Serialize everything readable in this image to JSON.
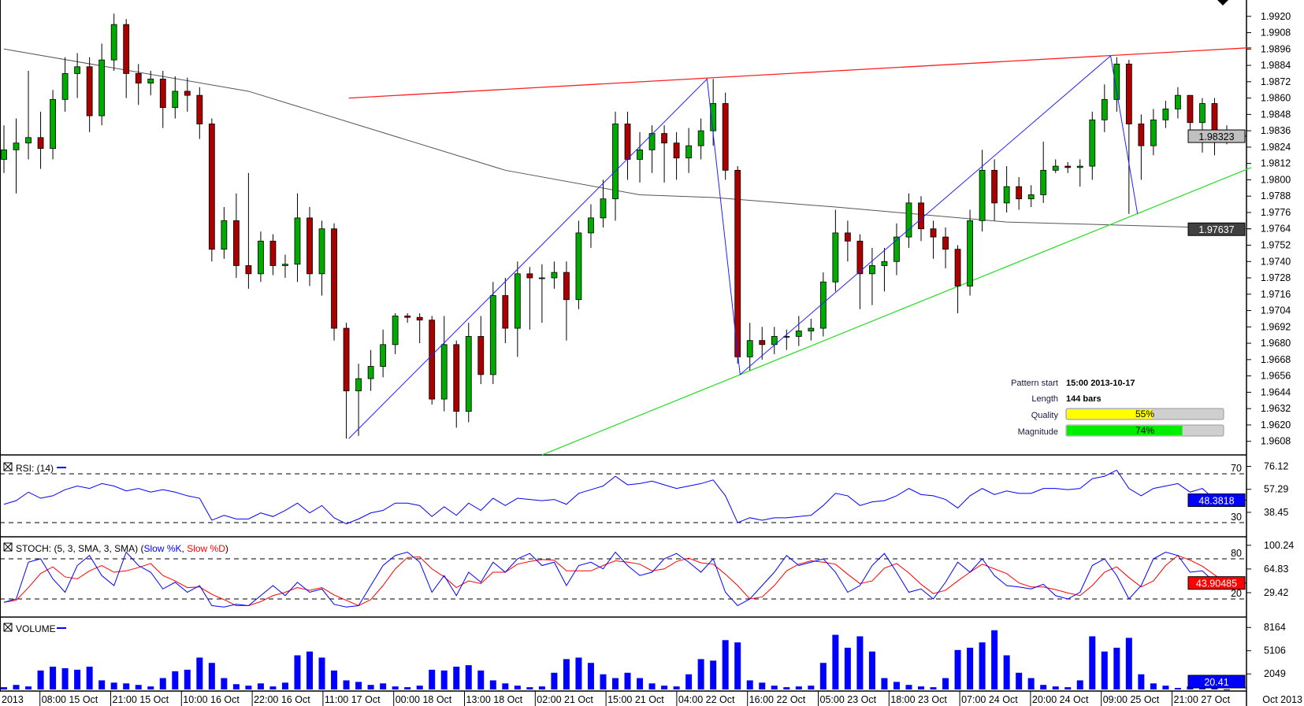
{
  "chart_data": [
    {
      "type": "candlestick",
      "panel": "price",
      "ylim": [
        1.9598,
        1.9932
      ],
      "y_ticks": [
        "1.9920",
        "1.9908",
        "1.9896",
        "1.9884",
        "1.9872",
        "1.9860",
        "1.9848",
        "1.9836",
        "1.9824",
        "1.9812",
        "1.9800",
        "1.9788",
        "1.9776",
        "1.9764",
        "1.9752",
        "1.9740",
        "1.9728",
        "1.9716",
        "1.9704",
        "1.9692",
        "1.9680",
        "1.9668",
        "1.9656",
        "1.9644",
        "1.9632",
        "1.9620",
        "1.9608"
      ],
      "x_ticks": [
        "2013",
        "08:00 15 Oct",
        "21:00 15 Oct",
        "10:00 16 Oct",
        "22:00 16 Oct",
        "11:00 17 Oct",
        "00:00 18 Oct",
        "13:00 18 Oct",
        "02:00 21 Oct",
        "15:00 21 Oct",
        "04:00 22 Oct",
        "16:00 22 Oct",
        "05:00 23 Oct",
        "18:00 23 Oct",
        "07:00 24 Oct",
        "20:00 24 Oct",
        "09:00 25 Oct",
        "21:00 27 Oct",
        "Oct 2013"
      ],
      "open": [
        1.9815,
        1.9822,
        1.9827,
        1.9831,
        1.9823,
        1.9859,
        1.9878,
        1.9883,
        1.9847,
        1.9888,
        1.9914,
        1.9878,
        1.9871,
        1.9874,
        1.9853,
        1.9865,
        1.9862,
        1.9841,
        1.9749,
        1.977,
        1.9737,
        1.9731,
        1.9755,
        1.9737,
        1.9738,
        1.9772,
        1.9731,
        1.9764,
        1.9691,
        1.9645,
        1.9654,
        1.9663,
        1.9679,
        1.97,
        1.9699,
        1.9697,
        1.9639,
        1.9679,
        1.963,
        1.9685,
        1.9657,
        1.9715,
        1.9691,
        1.9731,
        1.9728,
        1.9728,
        1.9732,
        1.9712,
        1.9761,
        1.9772,
        1.9786,
        1.9841,
        1.9815,
        1.9822,
        1.9834,
        1.9827,
        1.9816,
        1.9825,
        1.9836,
        1.9856,
        1.9807,
        1.967,
        1.9682,
        1.9679,
        1.9685,
        1.9685,
        1.9689,
        1.9691,
        1.9725,
        1.9761,
        1.9755,
        1.9731,
        1.9737,
        1.974,
        1.9758,
        1.9783,
        1.9764,
        1.9758,
        1.9749,
        1.9722,
        1.977,
        1.9807,
        1.9783,
        1.9795,
        1.9786,
        1.9789,
        1.9807,
        1.981,
        1.9809,
        1.981,
        1.9844,
        1.9859,
        1.9885,
        1.9841,
        1.9825,
        1.9844,
        1.9852,
        1.9862,
        1.9842,
        1.9856,
        1.9834
      ],
      "high": [
        1.984,
        1.9845,
        1.988,
        1.985,
        1.9866,
        1.989,
        1.9893,
        1.989,
        1.99,
        1.9922,
        1.9918,
        1.9885,
        1.988,
        1.988,
        1.9876,
        1.9875,
        1.9868,
        1.9845,
        1.978,
        1.979,
        1.9805,
        1.9762,
        1.976,
        1.9745,
        1.979,
        1.978,
        1.977,
        1.9768,
        1.9695,
        1.9665,
        1.9675,
        1.969,
        1.9702,
        1.9702,
        1.9702,
        1.97,
        1.97,
        1.9682,
        1.9695,
        1.97,
        1.9725,
        1.9728,
        1.974,
        1.9736,
        1.9738,
        1.974,
        1.974,
        1.977,
        1.9782,
        1.98,
        1.985,
        1.985,
        1.9835,
        1.984,
        1.984,
        1.9835,
        1.9838,
        1.9845,
        1.9874,
        1.9864,
        1.981,
        1.9695,
        1.9692,
        1.9692,
        1.969,
        1.97,
        1.9698,
        1.9732,
        1.9778,
        1.977,
        1.976,
        1.975,
        1.975,
        1.9768,
        1.979,
        1.9788,
        1.977,
        1.9765,
        1.9752,
        1.9778,
        1.9822,
        1.9815,
        1.981,
        1.9802,
        1.9796,
        1.9828,
        1.9815,
        1.9813,
        1.9815,
        1.985,
        1.987,
        1.989,
        1.9888,
        1.9848,
        1.9852,
        1.9858,
        1.9868,
        1.9862,
        1.986,
        1.986,
        1.984
      ],
      "low": [
        1.9805,
        1.979,
        1.9815,
        1.9808,
        1.9815,
        1.985,
        1.986,
        1.9835,
        1.984,
        1.988,
        1.986,
        1.9855,
        1.9862,
        1.9838,
        1.9845,
        1.985,
        1.983,
        1.974,
        1.9742,
        1.9728,
        1.972,
        1.9725,
        1.973,
        1.9728,
        1.9725,
        1.9722,
        1.9715,
        1.9682,
        1.961,
        1.9612,
        1.9645,
        1.9655,
        1.9672,
        1.9695,
        1.968,
        1.9635,
        1.963,
        1.9618,
        1.9622,
        1.965,
        1.965,
        1.968,
        1.967,
        1.969,
        1.9695,
        1.972,
        1.9682,
        1.9705,
        1.975,
        1.9765,
        1.977,
        1.98,
        1.9798,
        1.9805,
        1.9798,
        1.98,
        1.9805,
        1.9815,
        1.9825,
        1.98,
        1.9665,
        1.966,
        1.9668,
        1.9672,
        1.9675,
        1.9678,
        1.9682,
        1.9685,
        1.9718,
        1.974,
        1.9705,
        1.9708,
        1.9718,
        1.973,
        1.975,
        1.9755,
        1.9742,
        1.9735,
        1.9702,
        1.9715,
        1.9762,
        1.977,
        1.9776,
        1.9778,
        1.978,
        1.9783,
        1.9805,
        1.9805,
        1.9795,
        1.98,
        1.9835,
        1.985,
        1.9775,
        1.98,
        1.9818,
        1.9838,
        1.9845,
        1.983,
        1.982,
        1.9818,
        1.9826
      ],
      "close": [
        1.9822,
        1.9827,
        1.9831,
        1.9823,
        1.9859,
        1.9878,
        1.9883,
        1.9847,
        1.9888,
        1.9914,
        1.9878,
        1.9871,
        1.9874,
        1.9853,
        1.9865,
        1.9862,
        1.9841,
        1.9749,
        1.977,
        1.9737,
        1.9731,
        1.9755,
        1.9737,
        1.9738,
        1.9772,
        1.9731,
        1.9764,
        1.9691,
        1.9645,
        1.9654,
        1.9663,
        1.9679,
        1.97,
        1.9699,
        1.9697,
        1.9639,
        1.9679,
        1.963,
        1.9685,
        1.9657,
        1.9715,
        1.9691,
        1.9731,
        1.9728,
        1.9728,
        1.9732,
        1.9712,
        1.9761,
        1.9772,
        1.9786,
        1.9841,
        1.9815,
        1.9822,
        1.9834,
        1.9827,
        1.9816,
        1.9825,
        1.9836,
        1.9856,
        1.9807,
        1.967,
        1.9682,
        1.9679,
        1.9685,
        1.9685,
        1.9689,
        1.9691,
        1.9725,
        1.9761,
        1.9755,
        1.9731,
        1.9737,
        1.974,
        1.9758,
        1.9783,
        1.9764,
        1.9758,
        1.9749,
        1.9722,
        1.977,
        1.9807,
        1.9783,
        1.9795,
        1.9786,
        1.9789,
        1.9807,
        1.981,
        1.9809,
        1.981,
        1.9844,
        1.9859,
        1.9885,
        1.9841,
        1.9825,
        1.9844,
        1.9852,
        1.9862,
        1.9842,
        1.9856,
        1.9834,
        1.9832
      ],
      "last_price": "1.98323",
      "moving_average": {
        "last": "1.97637",
        "points": [
          [
            0,
            1.9896
          ],
          [
            20,
            1.9865
          ],
          [
            41,
            1.9807
          ],
          [
            52,
            1.9789
          ],
          [
            58,
            1.9787
          ],
          [
            68,
            1.978
          ],
          [
            82,
            1.9769
          ],
          [
            102,
            1.9764
          ]
        ],
        "color": "#555555"
      },
      "resistance_line": {
        "points": [
          [
            28.2,
            1.986
          ],
          [
            102,
            1.9897
          ]
        ],
        "color": "#ff2020"
      },
      "support_line": {
        "points": [
          [
            44,
            1.9598
          ],
          [
            102,
            1.9809
          ]
        ],
        "color": "#33dd33"
      },
      "pattern_zigzag": {
        "points": [
          [
            28.2,
            1.961
          ],
          [
            57.5,
            1.9874
          ],
          [
            60.2,
            1.9657
          ],
          [
            90.5,
            1.9891
          ],
          [
            92.7,
            1.9775
          ]
        ],
        "color": "#2020ff"
      },
      "colors": {
        "up": "#00aa00",
        "down": "#aa0000"
      }
    },
    {
      "type": "line",
      "panel": "rsi",
      "title": "RSI: (14)",
      "ylim": [
        19.7,
        84.2
      ],
      "y_ticks": [
        "76.12",
        "57.29",
        "38.45"
      ],
      "levels": [
        "70",
        "30"
      ],
      "last": "48.3818",
      "series": [
        {
          "name": "RSI",
          "color": "#0000ff",
          "values": [
            45,
            48,
            55,
            50,
            52,
            57,
            60,
            58,
            62,
            60,
            56,
            58,
            55,
            57,
            55,
            52,
            50,
            32,
            36,
            33,
            33,
            38,
            35,
            40,
            46,
            38,
            44,
            34,
            29,
            33,
            38,
            40,
            46,
            46,
            44,
            35,
            43,
            36,
            46,
            40,
            50,
            44,
            50,
            49,
            48,
            49,
            45,
            54,
            57,
            60,
            68,
            61,
            62,
            64,
            61,
            58,
            60,
            62,
            65,
            52,
            30,
            34,
            32,
            34,
            34,
            35,
            36,
            44,
            54,
            52,
            44,
            47,
            48,
            52,
            58,
            53,
            52,
            49,
            42,
            52,
            58,
            53,
            56,
            54,
            54,
            58,
            58,
            57,
            58,
            66,
            68,
            73,
            58,
            52,
            58,
            60,
            62,
            55,
            58,
            49,
            48.38
          ]
        }
      ]
    },
    {
      "type": "line",
      "panel": "stoch",
      "title_prefix": "STOCH: (5, 3, SMA, 3, SMA) (",
      "title_sep": ", ",
      "title_suffix": ")",
      "ylim": [
        -4.7,
        110.6
      ],
      "y_ticks": [
        "100.24",
        "64.83",
        "29.42"
      ],
      "levels": [
        "80",
        "20"
      ],
      "last": "43.90485",
      "series": [
        {
          "name": "Slow %K",
          "color": "#0000ff",
          "values": [
            15,
            20,
            75,
            80,
            50,
            30,
            70,
            85,
            55,
            40,
            90,
            70,
            60,
            35,
            45,
            30,
            40,
            10,
            8,
            12,
            10,
            25,
            40,
            25,
            45,
            30,
            35,
            12,
            8,
            10,
            40,
            70,
            85,
            90,
            75,
            30,
            55,
            25,
            60,
            45,
            75,
            60,
            80,
            88,
            70,
            75,
            40,
            70,
            75,
            65,
            90,
            70,
            55,
            60,
            80,
            88,
            75,
            60,
            80,
            30,
            10,
            20,
            40,
            60,
            85,
            70,
            75,
            80,
            60,
            30,
            40,
            70,
            88,
            60,
            30,
            35,
            20,
            45,
            75,
            60,
            80,
            55,
            40,
            38,
            35,
            42,
            25,
            20,
            30,
            70,
            80,
            55,
            20,
            40,
            80,
            90,
            85,
            60,
            62,
            45,
            46
          ]
        },
        {
          "name": "Slow %D",
          "color": "#ff0000",
          "values": [
            15,
            18,
            37,
            58,
            68,
            53,
            50,
            62,
            70,
            60,
            62,
            67,
            73,
            55,
            47,
            37,
            38,
            27,
            19,
            10,
            10,
            16,
            25,
            30,
            37,
            33,
            37,
            26,
            18,
            10,
            19,
            40,
            65,
            82,
            83,
            65,
            53,
            37,
            47,
            43,
            60,
            60,
            72,
            76,
            79,
            78,
            62,
            62,
            62,
            70,
            77,
            75,
            72,
            62,
            65,
            76,
            81,
            74,
            72,
            57,
            40,
            20,
            23,
            40,
            62,
            72,
            77,
            75,
            72,
            57,
            43,
            47,
            66,
            73,
            59,
            42,
            28,
            33,
            47,
            60,
            72,
            65,
            58,
            44,
            38,
            38,
            34,
            29,
            25,
            40,
            60,
            68,
            52,
            38,
            47,
            70,
            85,
            78,
            69,
            56,
            43.9
          ]
        }
      ]
    },
    {
      "type": "bar",
      "panel": "volume",
      "title": "VOLUME",
      "ylim": [
        0,
        9330
      ],
      "y_ticks": [
        "8164",
        "5106",
        "2049"
      ],
      "last": "20.41",
      "series": [
        {
          "name": "VOLUME",
          "color": "#0000ff",
          "values": [
            300,
            600,
            400,
            2500,
            3000,
            2800,
            2600,
            3000,
            1200,
            900,
            800,
            600,
            400,
            1500,
            2400,
            2600,
            4200,
            3500,
            1500,
            700,
            500,
            800,
            400,
            900,
            4500,
            5000,
            4200,
            2500,
            1200,
            1000,
            600,
            800,
            400,
            300,
            500,
            2600,
            2500,
            3000,
            3200,
            2500,
            1200,
            800,
            500,
            300,
            400,
            2200,
            4000,
            4200,
            3500,
            2000,
            1500,
            2200,
            1500,
            800,
            500,
            400,
            2000,
            4000,
            3800,
            6500,
            6200,
            1200,
            900,
            500,
            300,
            400,
            500,
            3500,
            7200,
            5500,
            7000,
            5000,
            1500,
            1000,
            600,
            400,
            300,
            1500,
            5200,
            5500,
            6200,
            7800,
            4500,
            2200,
            1500,
            600,
            400,
            300,
            1200,
            7000,
            5000,
            5500,
            6800,
            2000,
            800,
            500,
            200,
            400,
            300,
            200,
            20.41
          ]
        }
      ]
    }
  ],
  "pattern_info": {
    "start_label": "Pattern start",
    "start_value": "15:00 2013-10-17",
    "length_label": "Length",
    "length_value": "144 bars",
    "quality_label": "Quality",
    "quality_value": "55%",
    "quality_fraction": 0.55,
    "quality_color": "#ffff00",
    "magnitude_label": "Magnitude",
    "magnitude_value": "74%",
    "magnitude_fraction": 0.74,
    "magnitude_color": "#00ee00"
  }
}
